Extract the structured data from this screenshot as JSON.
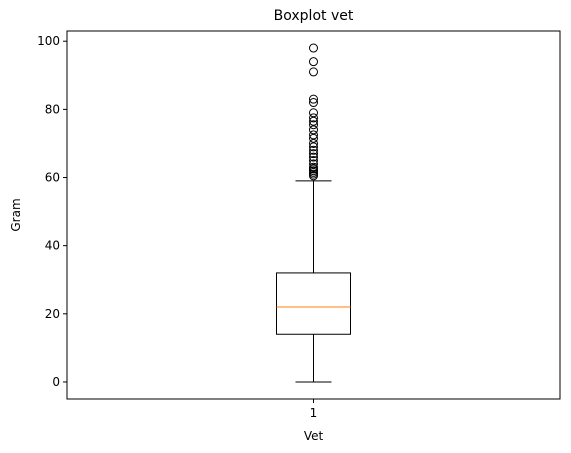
{
  "chart_data": {
    "type": "boxplot",
    "title": "Boxplot vet",
    "xlabel": "Vet",
    "ylabel": "Gram",
    "categories": [
      "1"
    ],
    "ylim": [
      -5,
      103
    ],
    "yticks": [
      0,
      20,
      40,
      60,
      80,
      100
    ],
    "grid": false,
    "series": [
      {
        "whisker_low": 0,
        "q1": 14,
        "median": 22,
        "q3": 32,
        "whisker_high": 59,
        "outliers": [
          60.5,
          61,
          61.5,
          62,
          62.5,
          63,
          64,
          65,
          66,
          67,
          68,
          69,
          70,
          71.5,
          72.5,
          74,
          75.5,
          76.5,
          77.5,
          79,
          82,
          83,
          91,
          94,
          98
        ]
      }
    ],
    "colors": {
      "box": "#000000",
      "median": "#ff7f0e",
      "outlier_edge": "#000000"
    }
  }
}
